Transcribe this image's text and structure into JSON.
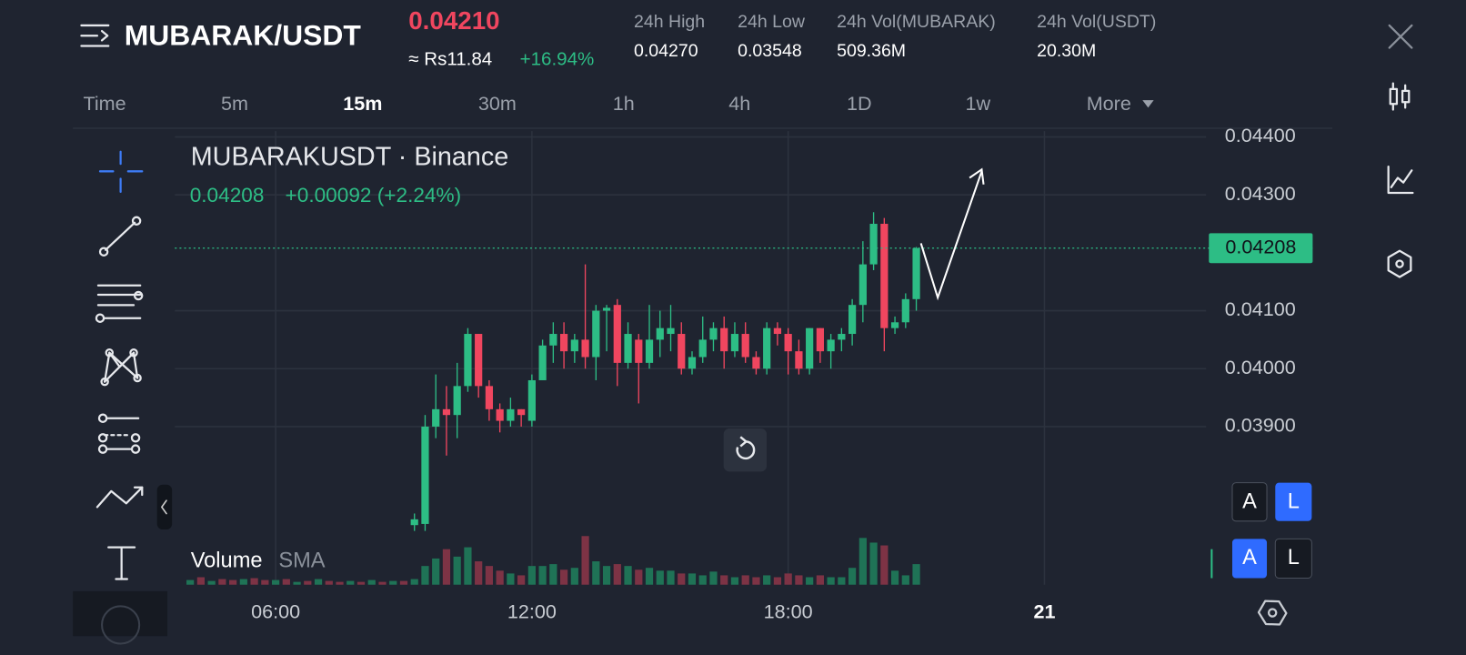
{
  "header": {
    "pair": "MUBARAK/USDT",
    "last_price": "0.04210",
    "fiat_price": "≈ Rs11.84",
    "change": "+16.94%",
    "stats": [
      {
        "label": "24h High",
        "value": "0.04270"
      },
      {
        "label": "24h Low",
        "value": "0.03548"
      },
      {
        "label": "24h Vol(MUBARAK)",
        "value": "509.36M"
      },
      {
        "label": "24h Vol(USDT)",
        "value": "20.30M"
      }
    ]
  },
  "tabs": [
    "Time",
    "5m",
    "15m",
    "30m",
    "1h",
    "4h",
    "1D",
    "1w",
    "More"
  ],
  "active_tab": "15m",
  "legend": {
    "symbol": "MUBARAKUSDT · Binance",
    "close": "0.04208",
    "change": "+0.00092 (+2.24%)"
  },
  "volume_legend": {
    "name": "Volume",
    "indicator": "SMA"
  },
  "scale_buttons": [
    [
      "A",
      "L"
    ],
    [
      "A",
      "L"
    ]
  ],
  "chart_data": {
    "type": "candlestick",
    "up_color": "#2dbd85",
    "down_color": "#f0465f",
    "xlim": [
      3.64,
      30.74
    ],
    "xticks": [
      {
        "value": 6,
        "label": "06:00"
      },
      {
        "value": 12,
        "label": "12:00"
      },
      {
        "value": 18,
        "label": "18:00"
      },
      {
        "value": 24,
        "label": "21"
      }
    ],
    "ylim": [
      0.03724,
      0.0441
    ],
    "yticks": [
      {
        "value": 0.044,
        "label": "0.04400"
      },
      {
        "value": 0.043,
        "label": "0.04300"
      },
      {
        "value": 0.041,
        "label": "0.04100"
      },
      {
        "value": 0.04,
        "label": "0.04000"
      },
      {
        "value": 0.039,
        "label": "0.03900"
      }
    ],
    "grid": true,
    "price_line": 0.04208,
    "x": [
      9.25,
      9.5,
      9.75,
      10,
      10.25,
      10.5,
      10.75,
      11,
      11.25,
      11.5,
      11.75,
      12,
      12.25,
      12.5,
      12.75,
      13,
      13.25,
      13.5,
      13.75,
      14,
      14.25,
      14.5,
      14.75,
      15,
      15.25,
      15.5,
      15.75,
      16,
      16.25,
      16.5,
      16.75,
      17,
      17.25,
      17.5,
      17.75,
      18,
      18.25,
      18.5,
      18.75,
      19,
      19.25,
      19.5,
      19.75,
      20,
      20.25,
      20.5,
      20.75,
      21
    ],
    "open": [
      0.0373,
      0.03732,
      0.039,
      0.0393,
      0.0392,
      0.0397,
      0.0406,
      0.0397,
      0.0393,
      0.0391,
      0.0393,
      0.0391,
      0.0398,
      0.0404,
      0.0406,
      0.0403,
      0.0405,
      0.0402,
      0.041,
      0.0411,
      0.0401,
      0.0405,
      0.0401,
      0.0405,
      0.0406,
      0.0406,
      0.04,
      0.0402,
      0.0405,
      0.0407,
      0.0403,
      0.0406,
      0.0402,
      0.04,
      0.0407,
      0.0406,
      0.0403,
      0.04,
      0.0407,
      0.0403,
      0.0405,
      0.0406,
      0.0411,
      0.0418,
      0.0425,
      0.0407,
      0.0408,
      0.0412
    ],
    "high": [
      0.0375,
      0.0392,
      0.0399,
      0.0397,
      0.0401,
      0.0407,
      0.0406,
      0.0398,
      0.0394,
      0.0395,
      0.0393,
      0.0399,
      0.0405,
      0.0408,
      0.0408,
      0.0406,
      0.0418,
      0.0411,
      0.0411,
      0.0412,
      0.0408,
      0.0406,
      0.0411,
      0.041,
      0.0411,
      0.0408,
      0.0403,
      0.0409,
      0.0408,
      0.0409,
      0.0408,
      0.0408,
      0.0403,
      0.0408,
      0.0408,
      0.0407,
      0.0405,
      0.0407,
      0.0407,
      0.0406,
      0.0407,
      0.0412,
      0.0422,
      0.0427,
      0.0426,
      0.0409,
      0.0413,
      0.0421
    ],
    "low": [
      0.0372,
      0.0372,
      0.0388,
      0.0385,
      0.0388,
      0.0396,
      0.0395,
      0.0391,
      0.0389,
      0.039,
      0.039,
      0.039,
      0.0398,
      0.0401,
      0.04,
      0.0401,
      0.04,
      0.0398,
      0.0403,
      0.0397,
      0.04,
      0.0394,
      0.04,
      0.0402,
      0.0403,
      0.0399,
      0.0399,
      0.0401,
      0.0403,
      0.04,
      0.0402,
      0.0401,
      0.0399,
      0.0399,
      0.0404,
      0.0399,
      0.0399,
      0.0399,
      0.0401,
      0.04,
      0.0403,
      0.0404,
      0.0408,
      0.0417,
      0.0403,
      0.0406,
      0.0407,
      0.041
    ],
    "close": [
      0.0374,
      0.039,
      0.0393,
      0.0392,
      0.0397,
      0.0406,
      0.0397,
      0.0393,
      0.0391,
      0.0393,
      0.0392,
      0.0398,
      0.0404,
      0.0406,
      0.0403,
      0.0405,
      0.0402,
      0.041,
      0.04105,
      0.0401,
      0.0406,
      0.0401,
      0.0405,
      0.0407,
      0.0407,
      0.04,
      0.0402,
      0.0405,
      0.0407,
      0.0403,
      0.0406,
      0.0402,
      0.04,
      0.0407,
      0.0406,
      0.0403,
      0.04,
      0.0407,
      0.0403,
      0.0405,
      0.0406,
      0.0411,
      0.0418,
      0.0425,
      0.0407,
      0.0408,
      0.0412,
      0.04208
    ],
    "vlim": [
      0,
      60
    ],
    "volume": [
      {
        "color": "#1f7356",
        "x": [
          4,
          4.5,
          5.25,
          6,
          6.5,
          7,
          7.75,
          8.25,
          8.75,
          9.25,
          9.5,
          9.75,
          10.25,
          10.5,
          11.5,
          12,
          12.25,
          12.5,
          13,
          13.5,
          13.75,
          14.25,
          14.75,
          15,
          15.25,
          15.75,
          16,
          16.25,
          16.75,
          17.5,
          18.5,
          19,
          19.25,
          19.5,
          19.75,
          20,
          20.5,
          20.75,
          21
        ],
        "values": [
          5,
          4,
          6,
          5,
          3,
          6,
          4,
          5,
          4,
          6,
          20,
          28,
          30,
          40,
          12,
          20,
          20,
          22,
          18,
          25,
          20,
          20,
          18,
          15,
          15,
          12,
          10,
          14,
          8,
          10,
          8,
          8,
          8,
          18,
          50,
          45,
          15,
          10,
          22
        ]
      },
      {
        "color": "#7d3345",
        "x": [
          4.25,
          4.75,
          5,
          5.5,
          5.75,
          6.25,
          6.75,
          7.25,
          7.5,
          8,
          8.5,
          9,
          10,
          10.75,
          11,
          11.25,
          11.75,
          12.75,
          13.25,
          14,
          14.5,
          15.5,
          16.5,
          17,
          17.25,
          17.75,
          18,
          18.25,
          18.75,
          20.25
        ],
        "values": [
          8,
          6,
          5,
          7,
          5,
          6,
          4,
          4,
          3,
          3,
          3,
          4,
          38,
          25,
          20,
          15,
          10,
          16,
          52,
          22,
          16,
          12,
          10,
          10,
          8,
          8,
          12,
          10,
          10,
          42
        ]
      }
    ]
  }
}
